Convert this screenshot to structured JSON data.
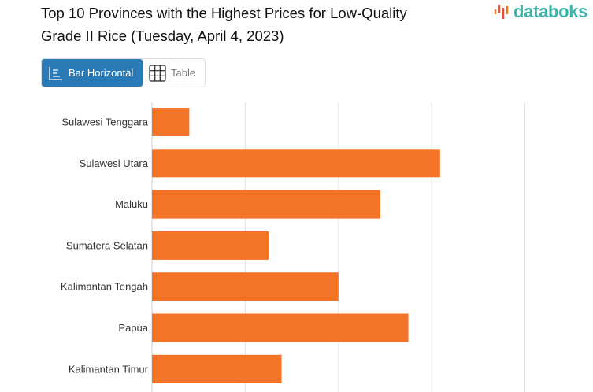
{
  "header": {
    "title": "Top 10 Provinces with the Highest Prices for Low-Quality Grade II Rice (Tuesday, April 4, 2023)",
    "logo": "databoks"
  },
  "tabs": [
    {
      "label": "Bar Horizontal",
      "icon": "bar-horizontal-icon",
      "active": true
    },
    {
      "label": "Table",
      "icon": "table-icon",
      "active": false
    }
  ],
  "colors": {
    "bar": "#f37427",
    "tab_active": "#2a7ab8",
    "logo": "#3bb3a9"
  },
  "chart_data": {
    "type": "bar",
    "orientation": "horizontal",
    "title": "Top 10 Provinces with the Highest Prices for Low-Quality Grade II Rice (Tuesday, April 4, 2023)",
    "categories": [
      "Sulawesi Tenggara",
      "Sulawesi Utara",
      "Maluku",
      "Sumatera Selatan",
      "Kalimantan Tengah",
      "Papua",
      "Kalimantan Timur"
    ],
    "values": [
      0.4,
      3.09,
      2.45,
      1.25,
      2.0,
      2.75,
      1.39
    ],
    "value_units": "gridline intervals (axis tick labels not visible)",
    "xlim": [
      0,
      4.73
    ],
    "grid": true,
    "gridlines": [
      0,
      1,
      2,
      3,
      4
    ]
  }
}
